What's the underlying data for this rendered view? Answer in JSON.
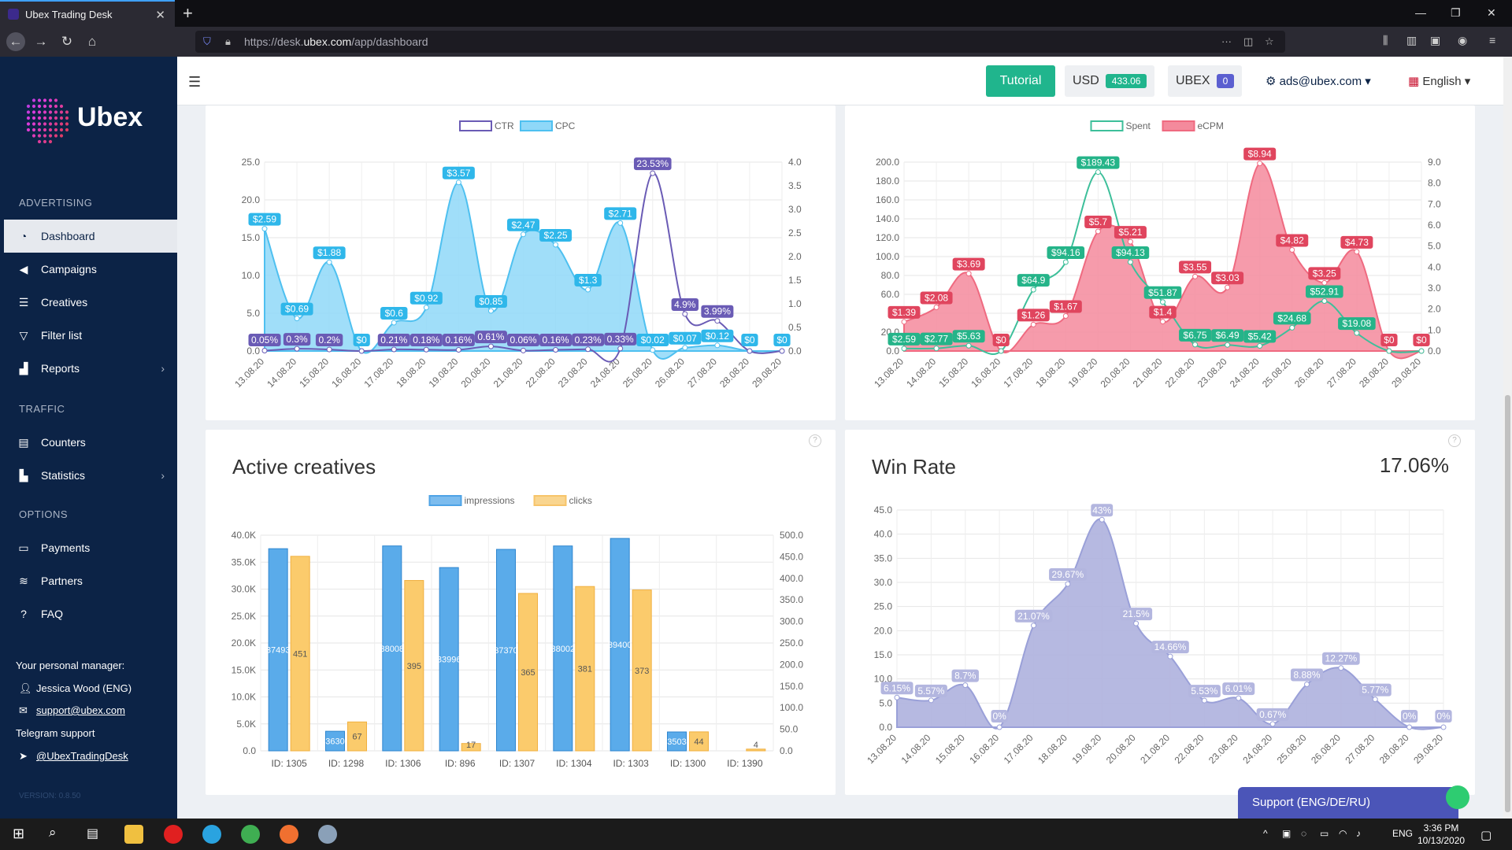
{
  "browser": {
    "tab_title": "Ubex Trading Desk",
    "url_prefix": "https://desk.",
    "url_domain": "ubex.com",
    "url_path": "/app/dashboard"
  },
  "sidebar": {
    "logo_text": "Ubex",
    "sections": {
      "advertising": "ADVERTISING",
      "traffic": "TRAFFIC",
      "options": "OPTIONS"
    },
    "items": {
      "dashboard": "Dashboard",
      "campaigns": "Campaigns",
      "creatives": "Creatives",
      "filter_list": "Filter list",
      "reports": "Reports",
      "counters": "Counters",
      "statistics": "Statistics",
      "payments": "Payments",
      "partners": "Partners",
      "faq": "FAQ"
    },
    "manager_label": "Your personal manager:",
    "manager_name": "Jessica Wood (ENG)",
    "manager_email": "support@ubex.com",
    "telegram_label": "Telegram support",
    "telegram_handle": "@UbexTradingDesk",
    "version": "VERSION: 0.8.50"
  },
  "topbar": {
    "tutorial": "Tutorial",
    "usd_label": "USD",
    "usd_value": "433.06",
    "ubex_label": "UBEX",
    "ubex_value": "0",
    "account": "ads@ubex.com",
    "language": "English"
  },
  "colors": {
    "sidebar": "#0c2346",
    "accent": "#20b58d",
    "ctr": "#6a5bb5",
    "cpc": "#4ec0f0",
    "spent": "#3dbf9a",
    "ecpm": "#ef6a80",
    "impressions": "#4ea3e6",
    "clicks": "#f7c46a",
    "winrate": "#aeb1de"
  },
  "support_button": "Support (ENG/DE/RU)",
  "taskbar": {
    "time": "3:36 PM",
    "date": "10/13/2020",
    "lang": "ENG"
  },
  "chart_data": [
    {
      "type": "line",
      "x": [
        "13.08.20",
        "14.08.20",
        "15.08.20",
        "16.08.20",
        "17.08.20",
        "18.08.20",
        "19.08.20",
        "20.08.20",
        "21.08.20",
        "22.08.20",
        "23.08.20",
        "24.08.20",
        "25.08.20",
        "26.08.20",
        "27.08.20",
        "28.08.20",
        "29.08.20"
      ],
      "series": [
        {
          "name": "CTR",
          "axis": "left",
          "values": [
            0.05,
            0.3,
            0.2,
            0,
            0.21,
            0.18,
            0.16,
            0.61,
            0.06,
            0.16,
            0.23,
            0.33,
            23.53,
            4.9,
            3.99,
            0,
            0
          ],
          "labels": [
            "0.05%",
            "0.3%",
            "0.2%",
            "",
            "0.21%",
            "0.18%",
            "0.16%",
            "0.61%",
            "0.06%",
            "0.16%",
            "0.23%",
            "0.33%",
            "23.53%",
            "4.9%",
            "3.99%",
            "",
            ""
          ]
        },
        {
          "name": "CPC",
          "axis": "right",
          "values": [
            2.59,
            0.69,
            1.88,
            0,
            0.6,
            0.92,
            3.57,
            0.85,
            2.47,
            2.25,
            1.3,
            2.71,
            0.02,
            0.07,
            0.12,
            0,
            0
          ],
          "labels": [
            "$2.59",
            "$0.69",
            "$1.88",
            "$0",
            "$0.6",
            "$0.92",
            "$3.57",
            "$0.85",
            "$2.47",
            "$2.25",
            "$1.3",
            "$2.71",
            "$0.02",
            "$0.07",
            "$0.12",
            "$0",
            "$0"
          ]
        }
      ],
      "ylim": [
        0,
        25
      ],
      "yticks": [
        "0.0",
        "5.0",
        "10.0",
        "15.0",
        "20.0",
        "25.0"
      ],
      "y2lim": [
        0,
        4
      ],
      "y2ticks": [
        "0.0",
        "0.5",
        "1.0",
        "1.5",
        "2.0",
        "2.5",
        "3.0",
        "3.5",
        "4.0"
      ]
    },
    {
      "type": "line",
      "x": [
        "13.08.20",
        "14.08.20",
        "15.08.20",
        "16.08.20",
        "17.08.20",
        "18.08.20",
        "19.08.20",
        "20.08.20",
        "21.08.20",
        "22.08.20",
        "23.08.20",
        "24.08.20",
        "25.08.20",
        "26.08.20",
        "27.08.20",
        "28.08.20",
        "29.08.20"
      ],
      "series": [
        {
          "name": "Spent",
          "axis": "left",
          "values": [
            2.59,
            2.77,
            5.63,
            0,
            64.9,
            94.16,
            189.43,
            94.13,
            51.87,
            6.75,
            6.49,
            5.42,
            24.68,
            52.91,
            19.08,
            0,
            0
          ],
          "labels": [
            "$2.59",
            "$2.77",
            "$5.63",
            "",
            "$64.9",
            "$94.16",
            "$189.43",
            "$94.13",
            "$51.87",
            "$6.75",
            "$6.49",
            "$5.42",
            "$24.68",
            "$52.91",
            "$19.08",
            "",
            ""
          ]
        },
        {
          "name": "eCPM",
          "axis": "right",
          "values": [
            1.39,
            2.08,
            3.69,
            0,
            1.26,
            1.67,
            5.7,
            5.21,
            1.4,
            3.55,
            3.03,
            8.94,
            4.82,
            3.25,
            4.73,
            0,
            0
          ],
          "labels": [
            "$1.39",
            "$2.08",
            "$3.69",
            "$0",
            "$1.26",
            "$1.67",
            "$5.7",
            "$5.21",
            "$1.4",
            "$3.55",
            "$3.03",
            "$8.94",
            "$4.82",
            "$3.25",
            "$4.73",
            "$0",
            "$0"
          ]
        }
      ],
      "ylim": [
        0,
        200
      ],
      "yticks": [
        "0.0",
        "20.0",
        "40",
        "60.0",
        "80.0",
        "100.0",
        "120.0",
        "140.0",
        "160.0",
        "180.0",
        "200.0"
      ],
      "y2lim": [
        0,
        9
      ],
      "y2ticks": [
        "0.0",
        "1.0",
        "2.0",
        "3.0",
        "4.0",
        "5.0",
        "6.0",
        "7.0",
        "8.0",
        "9.0"
      ]
    },
    {
      "type": "bar",
      "title": "Active creatives",
      "categories": [
        "ID: 1305",
        "ID: 1298",
        "ID: 1306",
        "ID: 896",
        "ID: 1307",
        "ID: 1304",
        "ID: 1303",
        "ID: 1300",
        "ID: 1390"
      ],
      "series": [
        {
          "name": "impressions",
          "axis": "left",
          "values": [
            37493,
            3630,
            38008,
            33996,
            37370,
            38002,
            39400,
            3503,
            0
          ],
          "labels": [
            "37493",
            "3630",
            "38008",
            "33996",
            "37370",
            "38002",
            "39400",
            "3503",
            ""
          ]
        },
        {
          "name": "clicks",
          "axis": "right",
          "values": [
            451,
            67,
            395,
            17,
            365,
            381,
            373,
            44,
            4
          ],
          "labels": [
            "451",
            "67",
            "395",
            "17",
            "365",
            "381",
            "373",
            "44",
            "4"
          ]
        }
      ],
      "ylim": [
        0,
        40000
      ],
      "yticks": [
        "0.0",
        "5.0K",
        "10.0K",
        "15.0K",
        "20.0K",
        "25.0K",
        "30.0K",
        "35.0K",
        "40.0K"
      ],
      "y2lim": [
        0,
        500
      ],
      "y2ticks": [
        "0.0",
        "50.0",
        "100.0",
        "150.0",
        "200.0",
        "250.0",
        "300.0",
        "350.0",
        "400.0",
        "450.0",
        "500.0"
      ]
    },
    {
      "type": "area",
      "title": "Win Rate",
      "headline": "17.06%",
      "x": [
        "13.08.20",
        "14.08.20",
        "15.08.20",
        "16.08.20",
        "17.08.20",
        "18.08.20",
        "19.08.20",
        "20.08.20",
        "21.08.20",
        "22.08.20",
        "23.08.20",
        "24.08.20",
        "25.08.20",
        "26.08.20",
        "27.08.20",
        "28.08.20",
        "29.08.20"
      ],
      "series": [
        {
          "values": [
            6.15,
            5.57,
            8.7,
            0,
            21.07,
            29.67,
            43,
            21.5,
            14.66,
            5.53,
            6.01,
            0.67,
            8.88,
            12.27,
            5.77,
            0,
            0
          ],
          "labels": [
            "6.15%",
            "5.57%",
            "8.7%",
            "0%",
            "21.07%",
            "29.67%",
            "43%",
            "21.5%",
            "14.66%",
            "5.53%",
            "6.01%",
            "0.67%",
            "8.88%",
            "12.27%",
            "5.77%",
            "0%",
            "0%"
          ]
        }
      ],
      "ylim": [
        0,
        45
      ],
      "yticks": [
        "0.0",
        "5.0",
        "10.0",
        "15.0",
        "20.0",
        "25.0",
        "30.0",
        "35.0",
        "40.0",
        "45.0"
      ]
    }
  ]
}
